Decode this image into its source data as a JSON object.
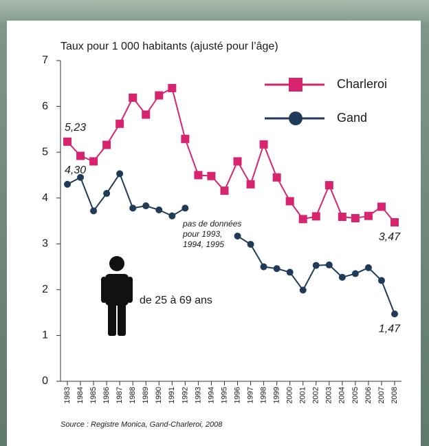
{
  "chart_data": {
    "type": "line",
    "y_axis_label": "Taux pour 1 000 habitants (ajusté pour l’âge)",
    "categories": [
      "1983",
      "1984",
      "1985",
      "1986",
      "1987",
      "1988",
      "1989",
      "1990",
      "1991",
      "1992",
      "1993",
      "1994",
      "1995",
      "1996",
      "1997",
      "1998",
      "1999",
      "2000",
      "2001",
      "2002",
      "2003",
      "2004",
      "2005",
      "2006",
      "2007",
      "2008"
    ],
    "series": [
      {
        "name": "Charleroi",
        "color": "#d6246e",
        "marker": "square",
        "values": [
          5.23,
          4.92,
          4.8,
          5.16,
          5.62,
          6.19,
          5.82,
          6.24,
          6.4,
          5.29,
          4.5,
          4.48,
          4.16,
          4.8,
          4.3,
          5.17,
          4.45,
          3.93,
          3.54,
          3.6,
          4.28,
          3.59,
          3.56,
          3.61,
          3.81,
          3.47
        ],
        "value_labels": [
          "5,23",
          null,
          null,
          null,
          null,
          null,
          null,
          null,
          null,
          null,
          null,
          null,
          null,
          null,
          null,
          null,
          null,
          null,
          null,
          null,
          null,
          null,
          null,
          null,
          null,
          "3,47"
        ]
      },
      {
        "name": "Gand",
        "color": "#1f3b57",
        "marker": "circle",
        "values": [
          4.3,
          4.45,
          3.72,
          4.1,
          4.53,
          3.78,
          3.83,
          3.74,
          3.61,
          3.78,
          null,
          null,
          null,
          3.17,
          2.99,
          2.5,
          2.46,
          2.38,
          1.99,
          2.53,
          2.54,
          2.27,
          2.35,
          2.48,
          2.2,
          1.47
        ],
        "value_labels": [
          "4,30",
          null,
          null,
          null,
          null,
          null,
          null,
          null,
          null,
          null,
          null,
          null,
          null,
          null,
          null,
          null,
          null,
          null,
          null,
          null,
          null,
          null,
          null,
          null,
          null,
          "1,47"
        ]
      }
    ],
    "ylim": [
      0,
      7
    ],
    "yticks": [
      0,
      1,
      2,
      3,
      4,
      5,
      6,
      7
    ],
    "note_lines": [
      "pas de données",
      "pour 1993,",
      "1994, 1995"
    ],
    "age_label": "de 25 à 69 ans",
    "source": "Source : Registre Monica, Gand-Charleroi, 2008"
  }
}
